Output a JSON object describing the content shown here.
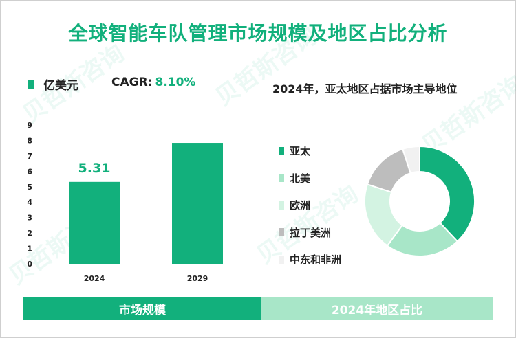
{
  "title": "全球智能车队管理市场规模及地区占比分析",
  "watermark": "贝哲斯咨询",
  "unit_label": "亿美元",
  "cagr": {
    "label": "CAGR:",
    "value": "8.10%"
  },
  "right_title": "2024年，亚太地区占据市场主导地位",
  "footer": {
    "left": "市场规模",
    "right": "2024年地区占比"
  },
  "colors": {
    "primary": "#12b07c",
    "light": "#a8e6c8"
  },
  "chart_data": [
    {
      "type": "bar",
      "title": "市场规模",
      "categories": [
        "2024",
        "2029"
      ],
      "values": [
        5.31,
        7.84
      ],
      "data_labels": [
        "5.31",
        ""
      ],
      "ylim": [
        0,
        9
      ],
      "yticks": [
        "0",
        "1",
        "2",
        "3",
        "4",
        "5",
        "6",
        "7",
        "8",
        "9"
      ],
      "color": "#12b07c",
      "grid": false
    },
    {
      "type": "pie",
      "title": "2024年地区占比",
      "donut": true,
      "labels": [
        "亚太",
        "北美",
        "欧洲",
        "拉丁美洲",
        "中东和非洲"
      ],
      "values": [
        38,
        22,
        20,
        15,
        5
      ],
      "colors": [
        "#12b07c",
        "#a8e6c8",
        "#d3f3e2",
        "#bdbdbd",
        "#f1f1f1"
      ],
      "legend": "left"
    }
  ]
}
